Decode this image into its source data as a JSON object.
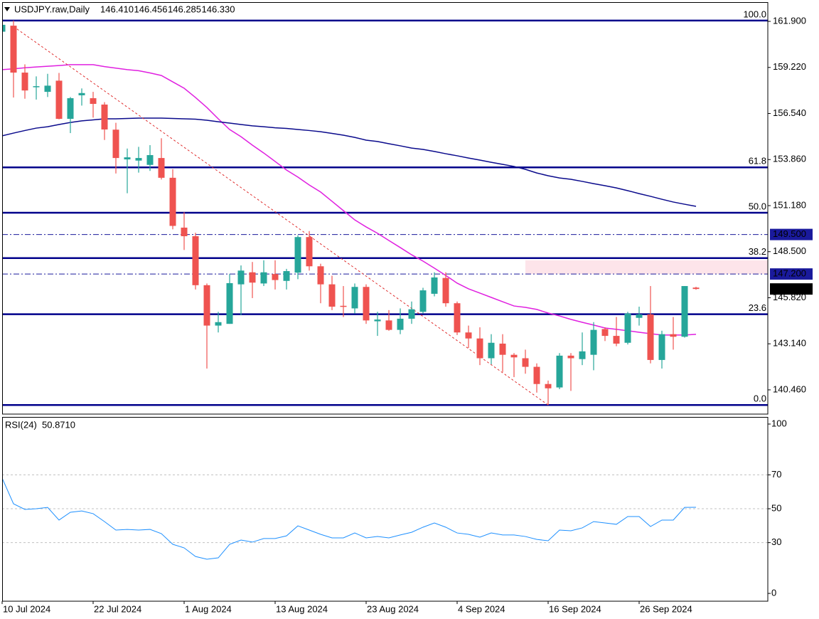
{
  "chart_data": [
    {
      "type": "candlestick",
      "title": "USDJPY.raw,Daily",
      "header": [
        {
          "value": 146.41,
          "label": "146.410"
        },
        {
          "value": 146.456,
          "label": "146.456"
        },
        {
          "value": 146.285,
          "label": "146.285"
        },
        {
          "value": 146.33,
          "label": "146.330"
        }
      ],
      "categories": [
        "10 Jul 2024",
        null,
        null,
        null,
        null,
        null,
        null,
        null,
        "22 Jul 2024",
        null,
        null,
        null,
        null,
        null,
        null,
        null,
        "1 Aug 2024",
        null,
        null,
        null,
        null,
        null,
        null,
        null,
        "13 Aug 2024",
        null,
        null,
        null,
        null,
        null,
        null,
        null,
        "23 Aug 2024",
        null,
        null,
        null,
        null,
        null,
        null,
        null,
        "4 Sep 2024",
        null,
        null,
        null,
        null,
        null,
        null,
        null,
        "16 Sep 2024",
        null,
        null,
        null,
        null,
        null,
        null,
        null,
        "26 Sep 2024",
        null,
        null,
        null,
        null,
        null
      ],
      "open": [
        161.3,
        161.65,
        158.92,
        158.1,
        157.8,
        158.45,
        156.23,
        157.6,
        157.43,
        157.06,
        155.6,
        153.87,
        153.8,
        153.55,
        153.95,
        152.8,
        149.9,
        149.4,
        146.55,
        144.2,
        144.3,
        146.6,
        147.3,
        146.65,
        147.2,
        146.8,
        147.28,
        149.35,
        147.65,
        146.6,
        145.35,
        145.2,
        146.45,
        144.45,
        144.5,
        143.95,
        144.6,
        145.0,
        146.05,
        146.97,
        145.5,
        143.8,
        143.45,
        142.3,
        143.15,
        142.5,
        142.3,
        141.8,
        140.8,
        140.6,
        142.45,
        142.25,
        142.5,
        144.0,
        143.6,
        143.2,
        144.65,
        144.85,
        142.2,
        143.7,
        143.55,
        146.41
      ],
      "high": [
        161.9,
        161.95,
        159.4,
        158.7,
        158.85,
        158.9,
        157.5,
        158.0,
        157.8,
        157.2,
        156.0,
        154.5,
        154.6,
        154.7,
        155.1,
        153.3,
        150.8,
        149.6,
        146.65,
        145.0,
        147.2,
        147.7,
        147.9,
        148.0,
        148.0,
        147.5,
        149.45,
        149.7,
        147.8,
        147.1,
        146.5,
        146.65,
        146.6,
        145.0,
        145.1,
        145.2,
        145.6,
        146.4,
        147.3,
        147.3,
        145.6,
        144.2,
        144.1,
        143.7,
        143.7,
        142.6,
        142.8,
        142.0,
        141.0,
        142.6,
        142.6,
        143.8,
        144.4,
        144.1,
        144.7,
        145.0,
        145.3,
        146.5,
        143.9,
        144.7,
        146.5,
        146.456
      ],
      "low": [
        161.2,
        157.47,
        157.4,
        157.35,
        157.5,
        156.2,
        155.4,
        157.0,
        156.3,
        155.0,
        153.05,
        151.9,
        153.1,
        153.2,
        152.7,
        149.8,
        148.6,
        146.3,
        141.7,
        143.8,
        144.3,
        144.8,
        145.8,
        146.5,
        146.3,
        146.3,
        146.9,
        147.4,
        145.5,
        145.1,
        144.7,
        144.9,
        144.3,
        143.6,
        143.9,
        143.7,
        144.3,
        144.9,
        145.9,
        145.3,
        143.65,
        142.9,
        141.9,
        141.95,
        141.5,
        141.2,
        141.4,
        140.3,
        139.58,
        140.5,
        140.4,
        141.9,
        141.6,
        143.3,
        143.0,
        143.1,
        144.2,
        142.0,
        141.7,
        142.8,
        143.5,
        146.285
      ],
      "close": [
        161.7,
        158.92,
        157.88,
        158.13,
        158.16,
        156.23,
        157.43,
        157.73,
        157.1,
        155.61,
        153.95,
        153.99,
        153.95,
        154.12,
        152.8,
        150.0,
        149.4,
        146.55,
        144.2,
        144.4,
        146.67,
        147.4,
        146.7,
        147.3,
        146.85,
        147.37,
        149.35,
        147.65,
        146.6,
        145.3,
        145.3,
        146.45,
        144.5,
        144.55,
        143.95,
        144.6,
        145.15,
        146.25,
        147.0,
        145.5,
        143.8,
        143.45,
        142.3,
        143.2,
        142.5,
        142.35,
        141.8,
        140.8,
        140.55,
        142.45,
        142.3,
        142.7,
        143.95,
        143.6,
        143.15,
        144.9,
        144.85,
        142.2,
        143.7,
        143.55,
        146.5,
        146.33
      ],
      "up_color": "#26a69a",
      "down_color": "#ef5350",
      "series": [
        {
          "color": "#e020e0",
          "values": [
            159.09,
            159.14,
            159.2,
            159.25,
            159.29,
            159.33,
            159.38,
            159.38,
            159.38,
            159.27,
            159.18,
            159.09,
            159.03,
            158.9,
            158.75,
            158.38,
            158.01,
            157.47,
            156.89,
            156.23,
            155.61,
            155.19,
            154.7,
            154.24,
            153.75,
            153.25,
            152.84,
            152.38,
            151.97,
            151.43,
            150.89,
            150.35,
            149.94,
            149.57,
            149.15,
            148.74,
            148.32,
            147.95,
            147.54,
            147.12,
            146.67,
            146.34,
            146.09,
            145.84,
            145.59,
            145.34,
            145.26,
            145.14,
            144.93,
            144.76,
            144.56,
            144.39,
            144.23,
            144.06,
            143.98,
            143.9,
            143.81,
            143.73,
            143.65,
            143.65,
            143.65,
            143.69
          ]
        },
        {
          "color": "#0a0a8c",
          "values": [
            155.24,
            155.4,
            155.55,
            155.69,
            155.77,
            155.9,
            156.02,
            156.11,
            156.17,
            156.23,
            156.23,
            156.25,
            156.27,
            156.27,
            156.27,
            156.25,
            156.23,
            156.21,
            156.15,
            156.06,
            155.98,
            155.9,
            155.82,
            155.77,
            155.71,
            155.67,
            155.61,
            155.55,
            155.48,
            155.38,
            155.28,
            155.15,
            154.99,
            154.91,
            154.78,
            154.66,
            154.53,
            154.45,
            154.33,
            154.2,
            154.08,
            153.95,
            153.83,
            153.7,
            153.58,
            153.46,
            153.29,
            153.08,
            152.92,
            152.79,
            152.71,
            152.59,
            152.46,
            152.34,
            152.21,
            152.05,
            151.88,
            151.72,
            151.55,
            151.39,
            151.26,
            151.14
          ]
        }
      ],
      "ylim": [
        139.05,
        163.02
      ],
      "yticks": [
        {
          "value": 161.9,
          "label": "161.900"
        },
        {
          "value": 159.22,
          "label": "159.220"
        },
        {
          "value": 156.54,
          "label": "156.540"
        },
        {
          "value": 153.86,
          "label": "153.860"
        },
        {
          "value": 151.18,
          "label": "151.180"
        },
        {
          "value": 148.5,
          "label": "148.500"
        },
        {
          "value": 145.82,
          "label": "145.820"
        },
        {
          "value": 143.14,
          "label": "143.140"
        },
        {
          "value": 140.46,
          "label": "140.460"
        }
      ],
      "fib": {
        "high": 161.95,
        "low": 139.58,
        "color": "#00008b",
        "levels": [
          {
            "value": 100,
            "label": "100.0"
          },
          61.8,
          {
            "value": 50,
            "label": "50.0"
          },
          38.2,
          23.6,
          {
            "value": 0,
            "label": "0.0"
          }
        ]
      },
      "hlines": [
        {
          "value": 149.5,
          "label": "149.500"
        },
        {
          "value": 147.2,
          "label": "147.200"
        }
      ],
      "hline_color": "#1a1a9c",
      "last_price": {
        "value": 146.33,
        "label": "146.330"
      },
      "trendline": {
        "x": [
          1,
          48
        ],
        "y": [
          161.6,
          139.58
        ],
        "color": "#e03030"
      },
      "zone": {
        "from": 46,
        "ylim": [
          147.2,
          148.0
        ],
        "color": "#fde4ea"
      }
    },
    {
      "type": "line",
      "title": "RSI(24)",
      "current": {
        "value": 50.871,
        "label": "50.8710"
      },
      "color": "#1e90ff",
      "values": [
        68.1,
        52.9,
        49.6,
        50.0,
        50.8,
        43.3,
        47.9,
        48.7,
        47.1,
        42.4,
        37.4,
        37.8,
        37.4,
        37.8,
        35.3,
        29.0,
        26.9,
        21.8,
        20.2,
        21.0,
        29.0,
        31.5,
        30.3,
        32.4,
        32.4,
        34.0,
        39.9,
        37.4,
        34.9,
        32.8,
        32.8,
        35.7,
        32.8,
        33.6,
        32.8,
        34.5,
        36.1,
        39.1,
        41.6,
        39.1,
        35.7,
        34.9,
        33.2,
        35.7,
        34.5,
        34.5,
        33.6,
        31.9,
        31.1,
        37.4,
        37.0,
        38.7,
        42.4,
        41.6,
        40.8,
        45.4,
        45.4,
        39.5,
        43.3,
        43.3,
        50.8,
        50.87
      ],
      "ylim": [
        -4.6,
        104.2
      ],
      "yticks": [
        0,
        30,
        50,
        70,
        100
      ],
      "levels": [
        30,
        50,
        70
      ]
    }
  ]
}
